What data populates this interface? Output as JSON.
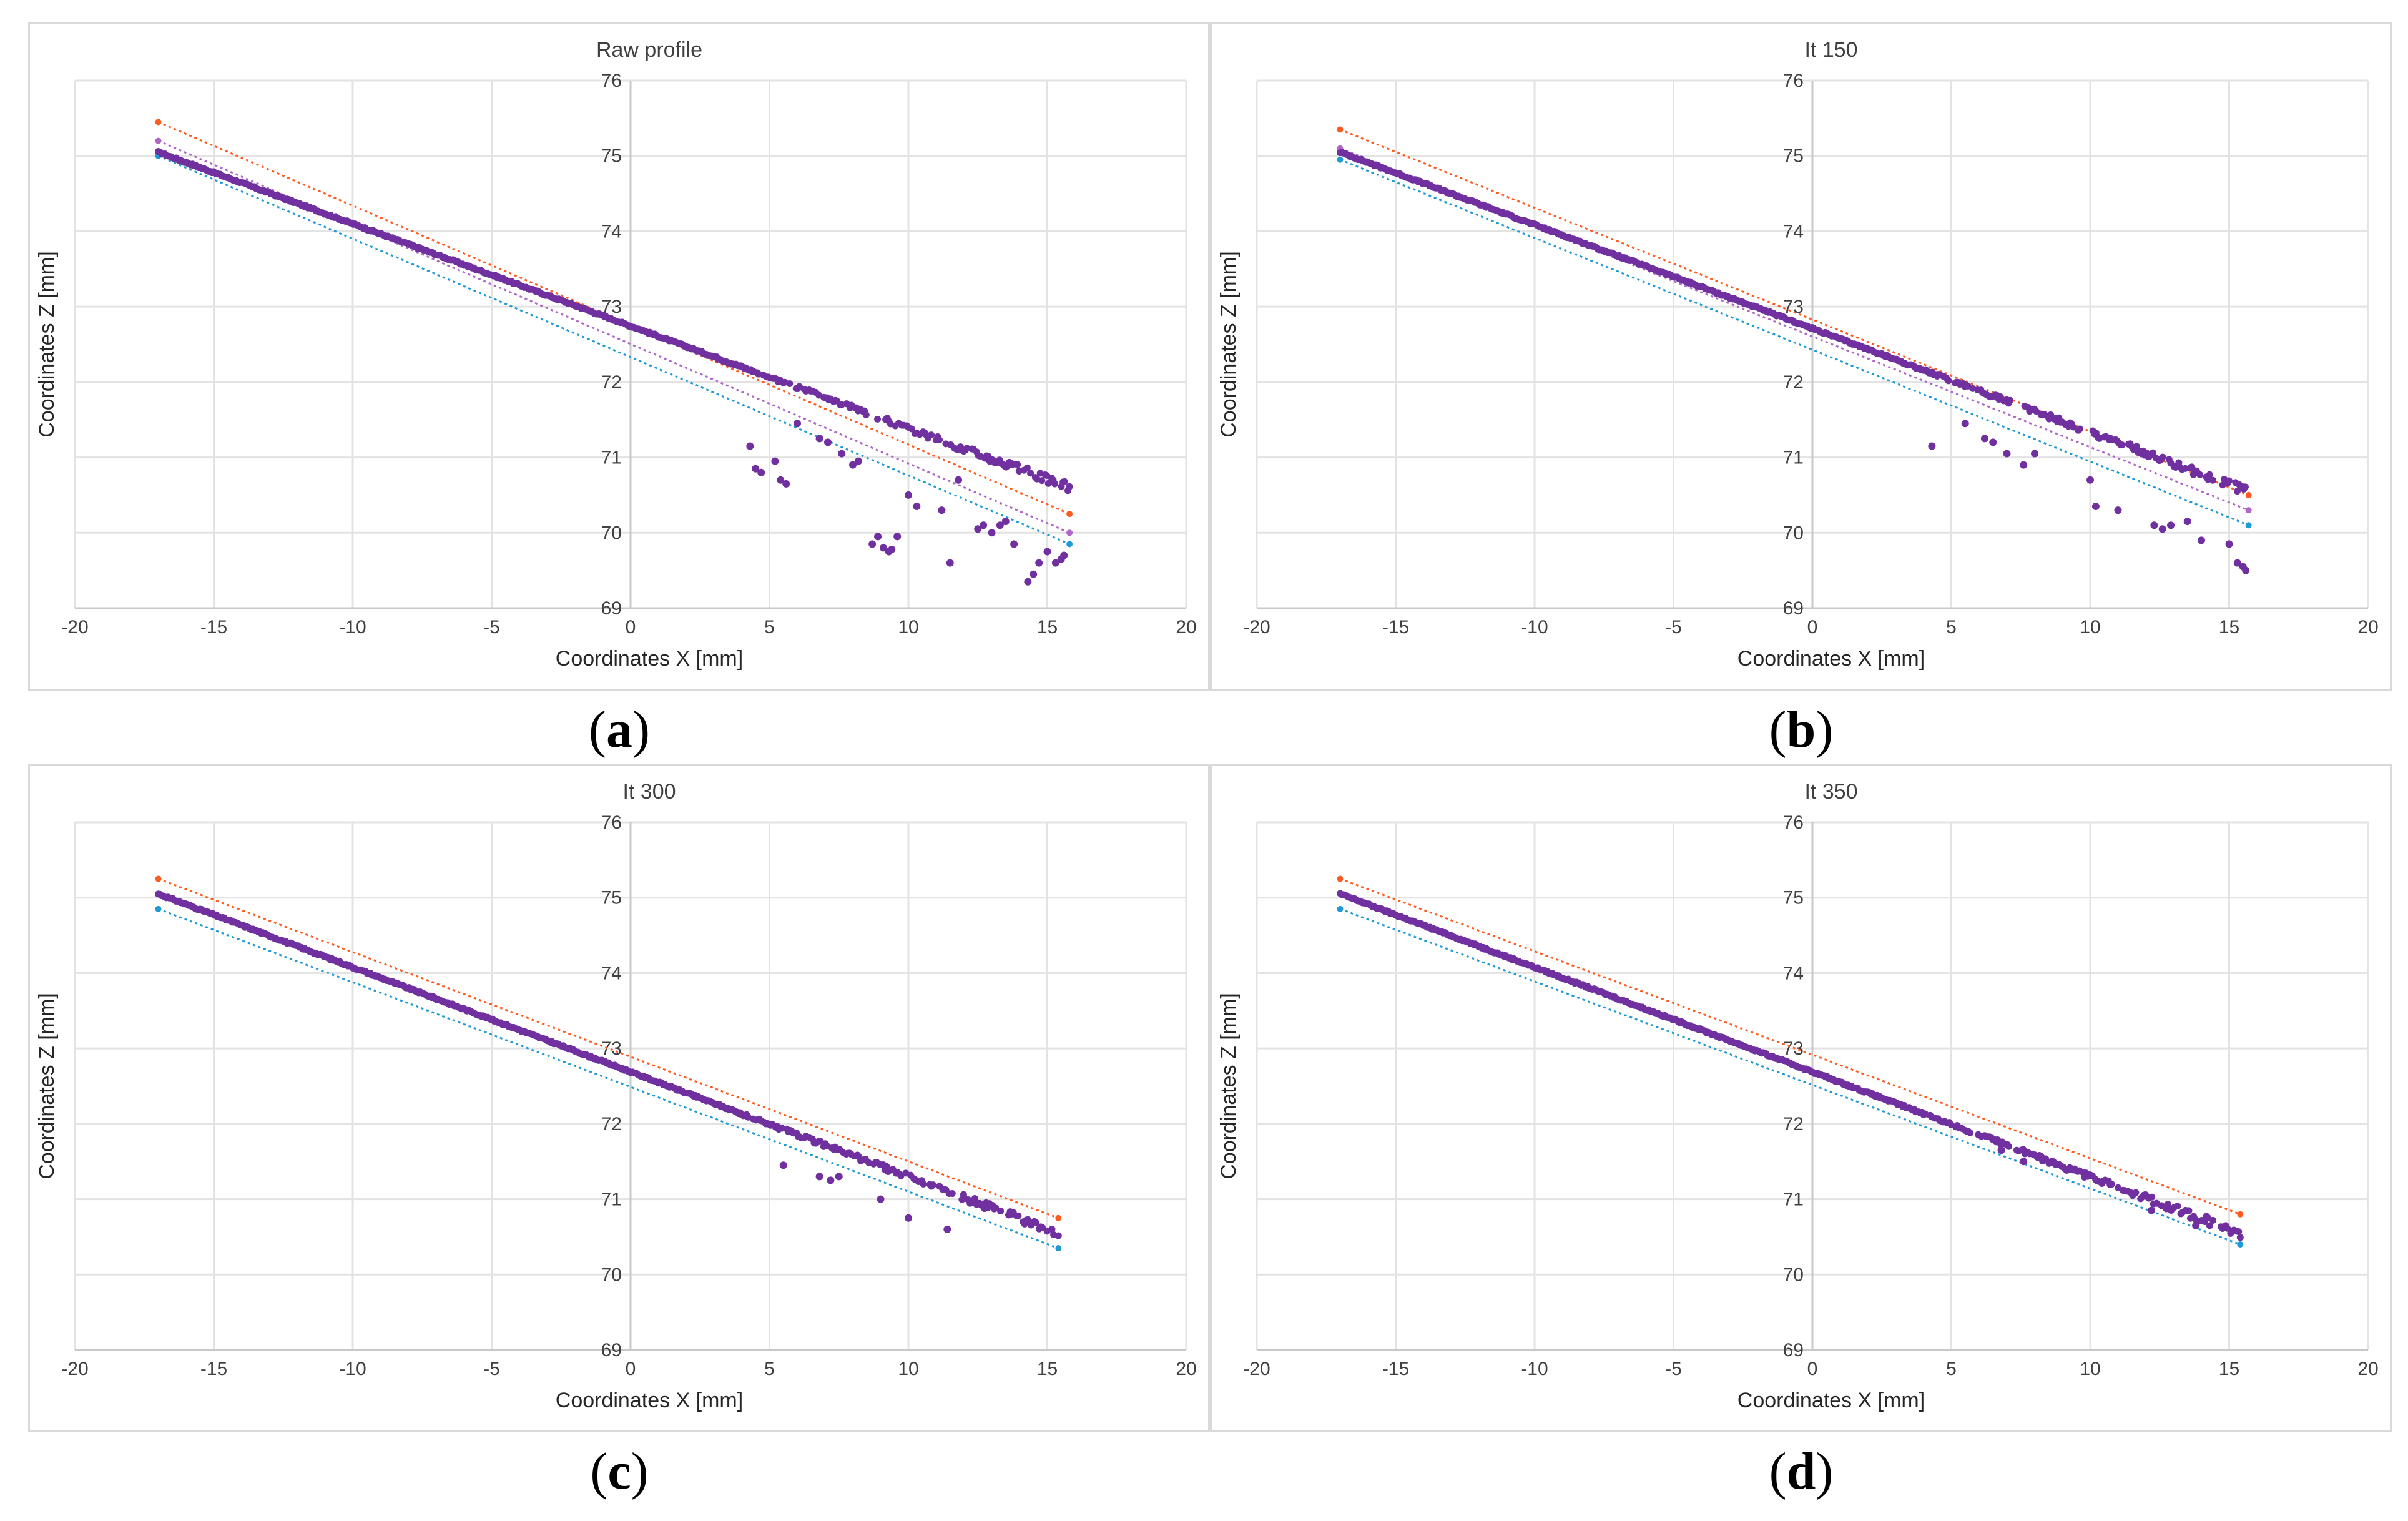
{
  "colors": {
    "profile": "#7030a0",
    "upper_line": "#ff5a1f",
    "lower_line": "#1f9ad6",
    "mid_line": "#b066c8",
    "grid": "#e3e3e3",
    "axis_text": "#404040"
  },
  "captions": [
    "a",
    "b",
    "c",
    "d"
  ],
  "chart_data": [
    {
      "type": "scatter",
      "title": "Raw profile",
      "xlabel": "Coordinates X [mm]",
      "ylabel": "Coordinates Z [mm]",
      "xlim": [
        -20,
        20
      ],
      "ylim": [
        69,
        76
      ],
      "xticks": [
        -20,
        -15,
        -10,
        -5,
        0,
        5,
        10,
        15,
        20
      ],
      "yticks": [
        69,
        70,
        71,
        72,
        73,
        74,
        75,
        76
      ],
      "grid": true,
      "main_profile": {
        "x_start": -17,
        "x_end": 15.8,
        "z_start": 75.05,
        "z_end": 70.6
      },
      "outliers": [
        [
          4.3,
          71.15
        ],
        [
          4.5,
          70.85
        ],
        [
          4.7,
          70.8
        ],
        [
          5.2,
          70.95
        ],
        [
          5.4,
          70.7
        ],
        [
          5.6,
          70.65
        ],
        [
          6.0,
          71.45
        ],
        [
          6.8,
          71.25
        ],
        [
          7.1,
          71.2
        ],
        [
          7.6,
          71.05
        ],
        [
          8.0,
          70.9
        ],
        [
          8.2,
          70.95
        ],
        [
          8.7,
          69.85
        ],
        [
          8.9,
          69.95
        ],
        [
          9.1,
          69.8
        ],
        [
          9.3,
          69.75
        ],
        [
          9.4,
          69.78
        ],
        [
          9.6,
          69.95
        ],
        [
          10.0,
          70.5
        ],
        [
          10.3,
          70.35
        ],
        [
          11.2,
          70.3
        ],
        [
          11.5,
          69.6
        ],
        [
          11.8,
          70.7
        ],
        [
          12.5,
          70.05
        ],
        [
          12.7,
          70.1
        ],
        [
          13.0,
          70.0
        ],
        [
          13.3,
          70.1
        ],
        [
          13.5,
          70.15
        ],
        [
          13.8,
          69.85
        ],
        [
          14.3,
          69.35
        ],
        [
          14.5,
          69.45
        ],
        [
          14.7,
          69.6
        ],
        [
          15.0,
          69.75
        ],
        [
          15.3,
          69.6
        ],
        [
          15.5,
          69.65
        ],
        [
          15.6,
          69.7
        ]
      ],
      "lines": [
        {
          "name": "upper",
          "color": "#ff5a1f",
          "x": [
            -17,
            15.8
          ],
          "z": [
            75.45,
            70.25
          ]
        },
        {
          "name": "mid",
          "color": "#b066c8",
          "x": [
            -17,
            15.8
          ],
          "z": [
            75.2,
            70.0
          ]
        },
        {
          "name": "lower",
          "color": "#1f9ad6",
          "x": [
            -17,
            15.8
          ],
          "z": [
            75.0,
            69.85
          ]
        }
      ]
    },
    {
      "type": "scatter",
      "title": "It 150",
      "xlabel": "Coordinates X [mm]",
      "ylabel": "Coordinates Z [mm]",
      "xlim": [
        -20,
        20
      ],
      "ylim": [
        69,
        76
      ],
      "xticks": [
        -20,
        -15,
        -10,
        -5,
        0,
        5,
        10,
        15,
        20
      ],
      "yticks": [
        69,
        70,
        71,
        72,
        73,
        74,
        75,
        76
      ],
      "grid": true,
      "main_profile": {
        "x_start": -17,
        "x_end": 15.7,
        "z_start": 75.05,
        "z_end": 70.55
      },
      "outliers": [
        [
          4.3,
          71.15
        ],
        [
          5.5,
          71.45
        ],
        [
          6.2,
          71.25
        ],
        [
          6.5,
          71.2
        ],
        [
          7.0,
          71.05
        ],
        [
          7.6,
          70.9
        ],
        [
          8.0,
          71.05
        ],
        [
          10.0,
          70.7
        ],
        [
          10.2,
          70.35
        ],
        [
          11.0,
          70.3
        ],
        [
          12.3,
          70.1
        ],
        [
          12.6,
          70.05
        ],
        [
          12.9,
          70.1
        ],
        [
          13.5,
          70.15
        ],
        [
          14.0,
          69.9
        ],
        [
          15.0,
          69.85
        ],
        [
          15.3,
          69.6
        ],
        [
          15.5,
          69.55
        ],
        [
          15.6,
          69.5
        ]
      ],
      "lines": [
        {
          "name": "upper",
          "color": "#ff5a1f",
          "x": [
            -17,
            15.7
          ],
          "z": [
            75.35,
            70.5
          ]
        },
        {
          "name": "mid",
          "color": "#b066c8",
          "x": [
            -17,
            15.7
          ],
          "z": [
            75.1,
            70.3
          ]
        },
        {
          "name": "lower",
          "color": "#1f9ad6",
          "x": [
            -17,
            15.7
          ],
          "z": [
            74.95,
            70.1
          ]
        }
      ]
    },
    {
      "type": "scatter",
      "title": "It 300",
      "xlabel": "Coordinates X [mm]",
      "ylabel": "Coordinates Z [mm]",
      "xlim": [
        -20,
        20
      ],
      "ylim": [
        69,
        76
      ],
      "xticks": [
        -20,
        -15,
        -10,
        -5,
        0,
        5,
        10,
        15,
        20
      ],
      "yticks": [
        69,
        70,
        71,
        72,
        73,
        74,
        75,
        76
      ],
      "grid": true,
      "main_profile": {
        "x_start": -17,
        "x_end": 15.4,
        "z_start": 75.05,
        "z_end": 70.55
      },
      "outliers": [
        [
          5.5,
          71.45
        ],
        [
          6.8,
          71.3
        ],
        [
          7.2,
          71.25
        ],
        [
          7.5,
          71.3
        ],
        [
          9.0,
          71.0
        ],
        [
          10.0,
          70.75
        ],
        [
          11.4,
          70.6
        ]
      ],
      "lines": [
        {
          "name": "upper",
          "color": "#ff5a1f",
          "x": [
            -17,
            15.4
          ],
          "z": [
            75.25,
            70.75
          ]
        },
        {
          "name": "lower",
          "color": "#1f9ad6",
          "x": [
            -17,
            15.4
          ],
          "z": [
            74.85,
            70.35
          ]
        }
      ]
    },
    {
      "type": "scatter",
      "title": "It 350",
      "xlabel": "Coordinates X [mm]",
      "ylabel": "Coordinates Z [mm]",
      "xlim": [
        -20,
        20
      ],
      "ylim": [
        69,
        76
      ],
      "xticks": [
        -20,
        -15,
        -10,
        -5,
        0,
        5,
        10,
        15,
        20
      ],
      "yticks": [
        69,
        70,
        71,
        72,
        73,
        74,
        75,
        76
      ],
      "grid": true,
      "main_profile": {
        "x_start": -17,
        "x_end": 15.4,
        "z_start": 75.05,
        "z_end": 70.55
      },
      "outliers": [
        [
          6.8,
          71.65
        ],
        [
          7.6,
          71.5
        ],
        [
          12.2,
          70.85
        ],
        [
          13.8,
          70.65
        ]
      ],
      "lines": [
        {
          "name": "upper",
          "color": "#ff5a1f",
          "x": [
            -17,
            15.4
          ],
          "z": [
            75.25,
            70.8
          ]
        },
        {
          "name": "lower",
          "color": "#1f9ad6",
          "x": [
            -17,
            15.4
          ],
          "z": [
            74.85,
            70.4
          ]
        }
      ]
    }
  ]
}
